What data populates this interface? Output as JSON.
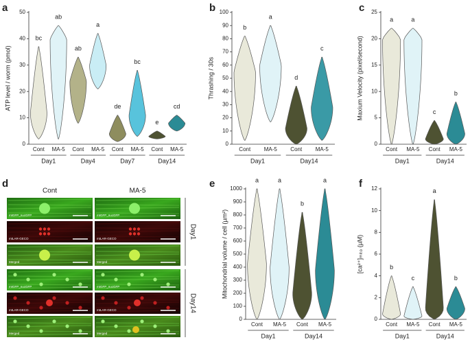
{
  "chart_data": [
    {
      "type": "violin",
      "panel": "a",
      "ylabel": "ATP level / worm (pmol)",
      "ylim": [
        0,
        50
      ],
      "yticks": [
        0,
        10,
        20,
        30,
        40,
        50
      ],
      "groups": [
        {
          "name": "Day1",
          "violins": [
            {
              "category": "Cont",
              "low": 2,
              "peak": 12,
              "high": 37,
              "color": "#e9e9da",
              "letter": "bc"
            },
            {
              "category": "MA-5",
              "low": 2,
              "peak": 40,
              "high": 45,
              "color": "#e0f3f7",
              "letter": "ab"
            }
          ]
        },
        {
          "name": "Day4",
          "violins": [
            {
              "category": "Cont",
              "low": 8,
              "peak": 24,
              "high": 33,
              "color": "#b3b289",
              "letter": "ab"
            },
            {
              "category": "MA-5",
              "low": 21,
              "peak": 30,
              "high": 42,
              "color": "#c9edf5",
              "letter": "a"
            }
          ]
        },
        {
          "name": "Day7",
          "violins": [
            {
              "category": "Cont",
              "low": 1,
              "peak": 4,
              "high": 11,
              "color": "#8e8d5e",
              "letter": "de"
            },
            {
              "category": "MA-5",
              "low": 3,
              "peak": 11,
              "high": 28,
              "color": "#58c3dc",
              "letter": "bc"
            }
          ]
        },
        {
          "name": "Day14",
          "violins": [
            {
              "category": "Cont",
              "low": 2,
              "peak": 3,
              "high": 5,
              "color": "#4e5232",
              "letter": "e"
            },
            {
              "category": "MA-5",
              "low": 5,
              "peak": 8,
              "high": 11,
              "color": "#2b8b95",
              "letter": "cd"
            }
          ]
        }
      ]
    },
    {
      "type": "violin",
      "panel": "b",
      "ylabel": "Thrashing / 30s",
      "ylim": [
        0,
        100
      ],
      "yticks": [
        0,
        10,
        20,
        30,
        40,
        50,
        60,
        70,
        80,
        90,
        100
      ],
      "groups": [
        {
          "name": "Day1",
          "violins": [
            {
              "category": "Cont",
              "low": 3,
              "peak": 55,
              "high": 82,
              "color": "#e9e9da",
              "letter": "b"
            },
            {
              "category": "MA-5",
              "low": 17,
              "peak": 60,
              "high": 90,
              "color": "#e0f3f7",
              "letter": "a"
            }
          ]
        },
        {
          "name": "Day14",
          "violins": [
            {
              "category": "Cont",
              "low": 0,
              "peak": 12,
              "high": 44,
              "color": "#4e5232",
              "letter": "d"
            },
            {
              "category": "MA-5",
              "low": 3,
              "peak": 28,
              "high": 66,
              "color": "#3a9aa6",
              "letter": "c"
            }
          ]
        }
      ]
    },
    {
      "type": "violin",
      "panel": "c",
      "ylabel": "Maxium Velocity (pixel/second)",
      "ylim": [
        0,
        25
      ],
      "yticks": [
        0,
        5,
        10,
        15,
        20,
        25
      ],
      "groups": [
        {
          "name": "Day1",
          "violins": [
            {
              "category": "Cont",
              "low": 0,
              "peak": 20,
              "high": 22,
              "color": "#e9e9da",
              "letter": "a"
            },
            {
              "category": "MA-5",
              "low": 0,
              "peak": 20,
              "high": 22,
              "color": "#e0f3f7",
              "letter": "a"
            }
          ]
        },
        {
          "name": "Day14",
          "violins": [
            {
              "category": "Cont",
              "low": 0,
              "peak": 1,
              "high": 4.5,
              "color": "#4e5232",
              "letter": "c"
            },
            {
              "category": "MA-5",
              "low": 0,
              "peak": 2,
              "high": 8,
              "color": "#2b8b95",
              "letter": "b"
            }
          ]
        }
      ]
    },
    {
      "type": "violin",
      "panel": "e",
      "ylabel": "Mitochondrial volume / cell (µm²)",
      "ylim": [
        0,
        1000
      ],
      "yticks": [
        0,
        100,
        200,
        300,
        400,
        500,
        600,
        700,
        800,
        900,
        1000
      ],
      "groups": [
        {
          "name": "Day1",
          "violins": [
            {
              "category": "Cont",
              "low": 0,
              "peak": 430,
              "high": 1000,
              "color": "#e9e9da",
              "letter": "a"
            },
            {
              "category": "MA-5",
              "low": 0,
              "peak": 400,
              "high": 1000,
              "color": "#e0f3f7",
              "letter": "a"
            }
          ]
        },
        {
          "name": "Day14",
          "violins": [
            {
              "category": "Cont",
              "low": 0,
              "peak": 200,
              "high": 820,
              "color": "#4e5232",
              "letter": "b"
            },
            {
              "category": "MA-5",
              "low": 0,
              "peak": 380,
              "high": 1000,
              "color": "#2b8b95",
              "letter": "a"
            }
          ]
        }
      ]
    },
    {
      "type": "violin",
      "panel": "f",
      "ylabel": "[ca²⁺]ₘᵢₜₒ (µM)",
      "ylim": [
        0,
        12
      ],
      "yticks": [
        0,
        2,
        4,
        6,
        8,
        10,
        12
      ],
      "groups": [
        {
          "name": "Day1",
          "violins": [
            {
              "category": "Cont",
              "low": 0,
              "peak": 0.5,
              "high": 4,
              "color": "#e9e9da",
              "letter": "b"
            },
            {
              "category": "MA-5",
              "low": 0,
              "peak": 0.3,
              "high": 3,
              "color": "#e0f3f7",
              "letter": "c"
            }
          ]
        },
        {
          "name": "Day14",
          "violins": [
            {
              "category": "Cont",
              "low": 0,
              "peak": 1,
              "high": 11,
              "color": "#4e5232",
              "letter": "a"
            },
            {
              "category": "MA-5",
              "low": 0,
              "peak": 1,
              "high": 3,
              "color": "#2b8b95",
              "letter": "b"
            }
          ]
        }
      ]
    }
  ],
  "image_panel": {
    "panel": "d",
    "columns": [
      "Cont",
      "MA-5"
    ],
    "days": [
      "Day1",
      "Day14"
    ],
    "channels": [
      "mtGFP_nucGFP",
      "mtLAR-GECO",
      "Merged"
    ]
  }
}
